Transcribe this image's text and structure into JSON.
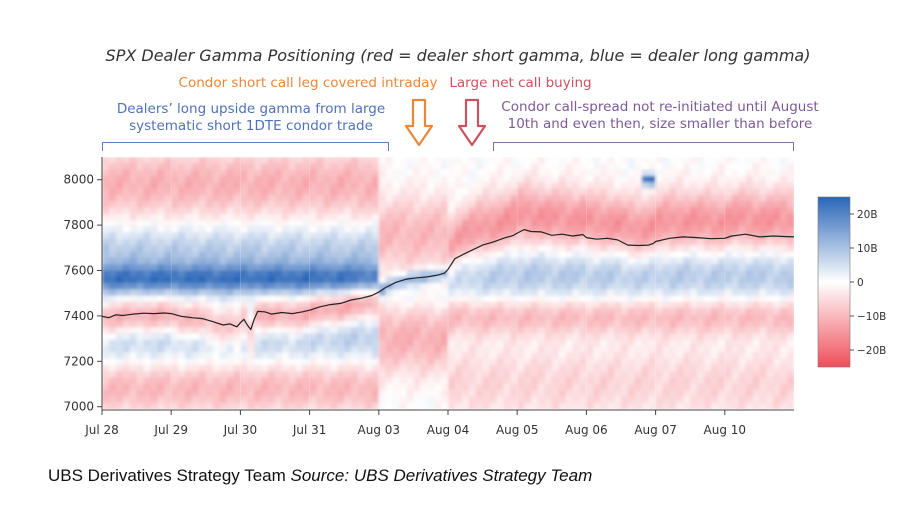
{
  "chart_data": {
    "type": "heatmap",
    "title": "SPX Dealer Gamma Positioning (red = dealer short gamma, blue = dealer long gamma)",
    "x_tick_labels": [
      "Jul 28",
      "Jul 29",
      "Jul 30",
      "Jul 31",
      "Aug 03",
      "Aug 04",
      "Aug 05",
      "Aug 06",
      "Aug 07",
      "Aug 10"
    ],
    "y_ticks": [
      7000,
      7200,
      7400,
      7600,
      7800,
      8000
    ],
    "ylim": [
      6990,
      8100
    ],
    "colorbar": {
      "ticks": [
        "20B",
        "10B",
        "0",
        "−10B",
        "−20B"
      ],
      "values": [
        20,
        10,
        0,
        -10,
        -20
      ],
      "range": [
        -25,
        25
      ],
      "negative_color": "#ef4f5a",
      "zero_color": "#ffffff",
      "positive_color": "#2a66b8"
    },
    "price_series": {
      "name": "SPX",
      "color": "#222222",
      "points": [
        [
          0.0,
          7398
        ],
        [
          0.1,
          7392
        ],
        [
          0.2,
          7405
        ],
        [
          0.3,
          7402
        ],
        [
          0.45,
          7408
        ],
        [
          0.6,
          7412
        ],
        [
          0.75,
          7410
        ],
        [
          0.9,
          7413
        ],
        [
          1.0,
          7410
        ],
        [
          1.15,
          7398
        ],
        [
          1.3,
          7392
        ],
        [
          1.45,
          7388
        ],
        [
          1.6,
          7375
        ],
        [
          1.75,
          7360
        ],
        [
          1.85,
          7365
        ],
        [
          1.95,
          7352
        ],
        [
          2.0,
          7370
        ],
        [
          2.05,
          7385
        ],
        [
          2.1,
          7360
        ],
        [
          2.15,
          7340
        ],
        [
          2.2,
          7385
        ],
        [
          2.25,
          7420
        ],
        [
          2.35,
          7418
        ],
        [
          2.45,
          7408
        ],
        [
          2.6,
          7415
        ],
        [
          2.75,
          7410
        ],
        [
          2.9,
          7418
        ],
        [
          3.0,
          7425
        ],
        [
          3.15,
          7440
        ],
        [
          3.3,
          7450
        ],
        [
          3.45,
          7455
        ],
        [
          3.6,
          7470
        ],
        [
          3.75,
          7478
        ],
        [
          3.9,
          7490
        ],
        [
          4.0,
          7505
        ],
        [
          4.1,
          7525
        ],
        [
          4.25,
          7548
        ],
        [
          4.4,
          7562
        ],
        [
          4.55,
          7568
        ],
        [
          4.7,
          7572
        ],
        [
          4.85,
          7580
        ],
        [
          4.95,
          7588
        ],
        [
          5.0,
          7605
        ],
        [
          5.1,
          7652
        ],
        [
          5.2,
          7668
        ],
        [
          5.35,
          7690
        ],
        [
          5.5,
          7712
        ],
        [
          5.65,
          7725
        ],
        [
          5.8,
          7742
        ],
        [
          5.95,
          7755
        ],
        [
          6.0,
          7765
        ],
        [
          6.1,
          7780
        ],
        [
          6.2,
          7772
        ],
        [
          6.35,
          7770
        ],
        [
          6.5,
          7755
        ],
        [
          6.65,
          7760
        ],
        [
          6.8,
          7752
        ],
        [
          6.95,
          7758
        ],
        [
          7.0,
          7745
        ],
        [
          7.15,
          7738
        ],
        [
          7.3,
          7742
        ],
        [
          7.45,
          7735
        ],
        [
          7.6,
          7712
        ],
        [
          7.75,
          7710
        ],
        [
          7.9,
          7712
        ],
        [
          7.97,
          7720
        ],
        [
          8.0,
          7728
        ],
        [
          8.2,
          7742
        ],
        [
          8.4,
          7748
        ],
        [
          8.6,
          7745
        ],
        [
          8.8,
          7740
        ],
        [
          9.0,
          7742
        ],
        [
          9.1,
          7752
        ],
        [
          9.3,
          7760
        ],
        [
          9.5,
          7748
        ],
        [
          9.7,
          7752
        ],
        [
          9.85,
          7750
        ],
        [
          10.0,
          7748
        ]
      ]
    }
  },
  "title_text": "SPX Dealer Gamma Positioning (red = dealer short gamma, blue = dealer long gamma)",
  "annotations": {
    "condor_covered": "Condor short call leg covered intraday",
    "net_call_buying": "Large net call buying",
    "dealers_long_line1": "Dealers’ long upside gamma from large",
    "dealers_long_line2": "systematic short 1DTE condor trade",
    "not_reinitiated_line1": "Condor call-spread not re-initiated until August",
    "not_reinitiated_line2": "10th and even then, size smaller than before"
  },
  "colors": {
    "orange": "#e8883a",
    "red": "#c9535e",
    "blue": "#4f71b8",
    "purple": "#7e5a95"
  },
  "caption": {
    "team": "UBS Derivatives Strategy Team",
    "source": "Source: UBS Derivatives Strategy Team"
  }
}
